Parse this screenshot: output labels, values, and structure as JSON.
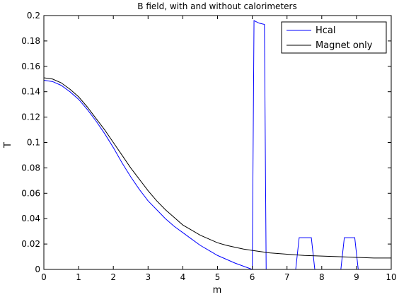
{
  "chart_data": {
    "type": "line",
    "title": "B field, with and without calorimeters",
    "xlabel": "m",
    "ylabel": "T",
    "xlim": [
      0,
      10
    ],
    "ylim": [
      0,
      0.2
    ],
    "x_ticks": [
      "0",
      "1",
      "2",
      "3",
      "4",
      "5",
      "6",
      "7",
      "8",
      "9",
      "10"
    ],
    "y_ticks": [
      "0",
      "0.02",
      "0.04",
      "0.06",
      "0.08",
      "0.1",
      "0.12",
      "0.14",
      "0.16",
      "0.18",
      "0.2"
    ],
    "grid": false,
    "legend_position": "top-right",
    "series": [
      {
        "name": "Hcal",
        "color": "#0000ff",
        "x": [
          0,
          0.25,
          0.5,
          0.75,
          1,
          1.25,
          1.5,
          1.75,
          2,
          2.25,
          2.5,
          2.75,
          3,
          3.25,
          3.5,
          3.75,
          4,
          4.25,
          4.5,
          4.75,
          5,
          5.25,
          5.5,
          5.75,
          6,
          6.05,
          6.2,
          6.35,
          6.4,
          7.25,
          7.35,
          7.7,
          7.8,
          8.55,
          8.65,
          8.95,
          9.05,
          10
        ],
        "y": [
          0.149,
          0.148,
          0.145,
          0.14,
          0.134,
          0.126,
          0.117,
          0.107,
          0.096,
          0.084,
          0.073,
          0.063,
          0.054,
          0.047,
          0.04,
          0.034,
          0.029,
          0.024,
          0.019,
          0.015,
          0.011,
          0.008,
          0.005,
          0.0025,
          0,
          0.196,
          0.194,
          0.193,
          0,
          0,
          0.025,
          0.025,
          0,
          0,
          0.025,
          0.025,
          0,
          0
        ]
      },
      {
        "name": "Magnet only",
        "color": "#000000",
        "x": [
          0,
          0.25,
          0.5,
          0.75,
          1,
          1.25,
          1.5,
          1.75,
          2,
          2.25,
          2.5,
          2.75,
          3,
          3.25,
          3.5,
          3.75,
          4,
          4.25,
          4.5,
          4.75,
          5,
          5.25,
          5.5,
          5.75,
          6,
          6.5,
          7,
          7.5,
          8,
          8.5,
          9,
          9.5,
          10
        ],
        "y": [
          0.151,
          0.15,
          0.147,
          0.142,
          0.136,
          0.128,
          0.119,
          0.11,
          0.1,
          0.09,
          0.08,
          0.071,
          0.062,
          0.054,
          0.047,
          0.041,
          0.035,
          0.031,
          0.027,
          0.024,
          0.021,
          0.019,
          0.0175,
          0.016,
          0.015,
          0.013,
          0.012,
          0.011,
          0.0105,
          0.01,
          0.0095,
          0.009,
          0.009
        ]
      }
    ]
  }
}
